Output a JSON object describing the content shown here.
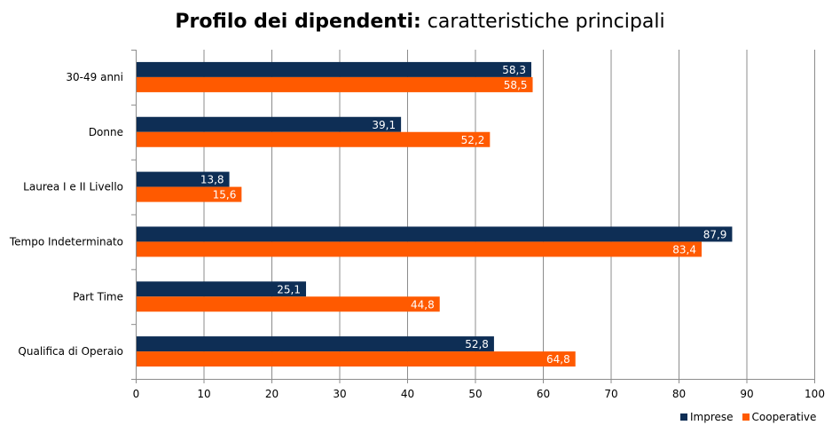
{
  "chart_data": {
    "type": "bar",
    "orientation": "horizontal",
    "title_bold": "Profilo dei dipendenti:",
    "title_rest": " caratteristiche principali",
    "categories": [
      "30-49 anni",
      "Donne",
      "Laurea I e II Livello",
      "Tempo Indeterminato",
      "Part Time",
      "Qualifica di Operaio"
    ],
    "series": [
      {
        "name": "Imprese",
        "color": "#0e2e55",
        "values": [
          58.3,
          39.1,
          13.8,
          87.9,
          25.1,
          52.8
        ]
      },
      {
        "name": "Cooperative",
        "color": "#ff5a00",
        "values": [
          58.5,
          52.2,
          15.6,
          83.4,
          44.8,
          64.8
        ]
      }
    ],
    "xlim": [
      0,
      100
    ],
    "xticks": [
      0,
      10,
      20,
      30,
      40,
      50,
      60,
      70,
      80,
      90,
      100
    ],
    "grid": true,
    "legend_position": "bottom-right",
    "decimal_separator": ","
  }
}
